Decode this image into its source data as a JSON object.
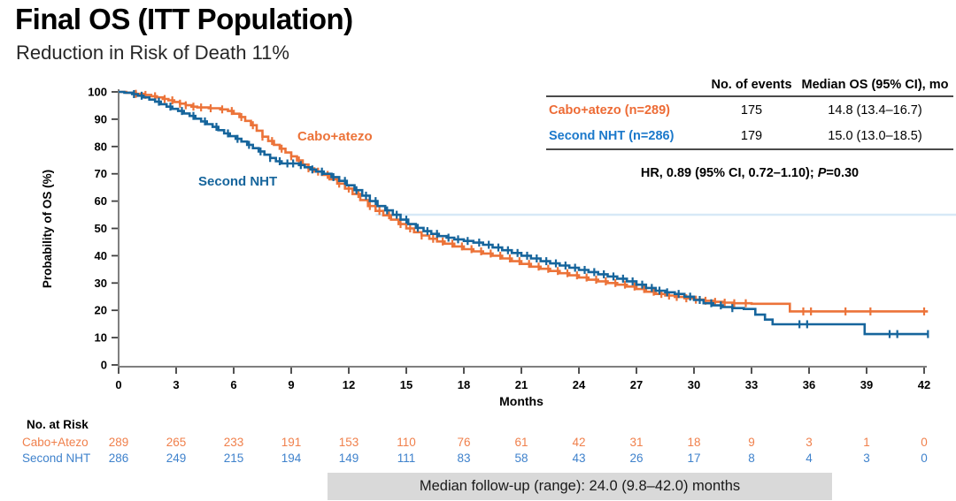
{
  "title": "Final OS (ITT Population)",
  "subtitle": "Reduction in Risk of Death 11%",
  "colors": {
    "curve_orange": "#EC7339",
    "curve_blue": "#16659C",
    "table_orange": "#ED6B35",
    "table_blue": "#1C79CB",
    "risk_orange": "#F0804C",
    "risk_blue": "#3F82CC",
    "axis_gray": "#7F7F7F",
    "tick_dark": "#3F3F3F",
    "rule_dark": "#4A4A4A",
    "footer_bg": "#D9D9D9",
    "ref_line": "#D7E9F7"
  },
  "chart_data": {
    "type": "line",
    "subtype": "kaplan-meier-step",
    "title": "Final OS (ITT Population)",
    "xlabel": "Months",
    "ylabel": "Probability of OS (%)",
    "xlim": [
      0,
      42
    ],
    "ylim": [
      0,
      100
    ],
    "x_ticks": [
      0,
      3,
      6,
      9,
      12,
      15,
      18,
      21,
      24,
      27,
      30,
      33,
      36,
      39,
      42
    ],
    "y_ticks": [
      0,
      10,
      20,
      30,
      40,
      50,
      60,
      70,
      80,
      90,
      100
    ],
    "grid": "off",
    "legend_position": "labels-on-curves",
    "reference_line": {
      "y_pct": 55,
      "x_start_month": 13.4
    },
    "series": [
      {
        "name": "Cabo+atezo",
        "n": 289,
        "events": 175,
        "median_os": "14.8 (13.4–16.7)",
        "steps": [
          [
            0,
            100
          ],
          [
            0.4,
            99.7
          ],
          [
            0.9,
            99.3
          ],
          [
            1.3,
            98.9
          ],
          [
            1.7,
            98.4
          ],
          [
            2.0,
            98.0
          ],
          [
            2.3,
            97.4
          ],
          [
            2.6,
            96.9
          ],
          [
            2.9,
            96.3
          ],
          [
            3.2,
            95.7
          ],
          [
            3.5,
            95.1
          ],
          [
            3.8,
            94.6
          ],
          [
            4.1,
            94.3
          ],
          [
            4.7,
            94.0
          ],
          [
            5.3,
            93.6
          ],
          [
            5.7,
            93.0
          ],
          [
            6.0,
            92.0
          ],
          [
            6.3,
            90.8
          ],
          [
            6.6,
            89.4
          ],
          [
            6.9,
            87.8
          ],
          [
            7.2,
            85.8
          ],
          [
            7.5,
            83.6
          ],
          [
            7.8,
            82.0
          ],
          [
            8.1,
            80.6
          ],
          [
            8.4,
            79.2
          ],
          [
            8.7,
            77.8
          ],
          [
            9.0,
            76.4
          ],
          [
            9.3,
            74.9
          ],
          [
            9.6,
            73.4
          ],
          [
            9.9,
            72.0
          ],
          [
            10.2,
            70.8
          ],
          [
            10.6,
            69.6
          ],
          [
            11.0,
            68.0
          ],
          [
            11.4,
            66.4
          ],
          [
            11.8,
            64.6
          ],
          [
            12.2,
            62.6
          ],
          [
            12.6,
            60.4
          ],
          [
            13.0,
            58.2
          ],
          [
            13.4,
            56.4
          ],
          [
            13.8,
            54.8
          ],
          [
            14.2,
            53.2
          ],
          [
            14.6,
            51.6
          ],
          [
            15.0,
            50.0
          ],
          [
            15.4,
            48.6
          ],
          [
            15.8,
            47.4
          ],
          [
            16.2,
            46.2
          ],
          [
            16.6,
            45.2
          ],
          [
            17.0,
            44.4
          ],
          [
            17.5,
            43.4
          ],
          [
            18.0,
            42.4
          ],
          [
            18.5,
            41.6
          ],
          [
            19.0,
            40.8
          ],
          [
            19.5,
            40.0
          ],
          [
            20.0,
            39.0
          ],
          [
            20.5,
            38.0
          ],
          [
            21.0,
            37.0
          ],
          [
            21.5,
            36.0
          ],
          [
            22.0,
            35.2
          ],
          [
            22.5,
            34.4
          ],
          [
            23.0,
            33.6
          ],
          [
            23.5,
            32.8
          ],
          [
            24.0,
            32.0
          ],
          [
            24.5,
            31.2
          ],
          [
            25.0,
            30.6
          ],
          [
            25.5,
            30.0
          ],
          [
            26.0,
            29.4
          ],
          [
            26.5,
            28.7
          ],
          [
            27.0,
            27.8
          ],
          [
            27.5,
            26.8
          ],
          [
            28.0,
            26.0
          ],
          [
            28.5,
            25.4
          ],
          [
            29.0,
            24.9
          ],
          [
            29.5,
            24.4
          ],
          [
            30.0,
            23.9
          ],
          [
            30.5,
            23.5
          ],
          [
            31.0,
            23.1
          ],
          [
            31.5,
            22.8
          ],
          [
            32.0,
            22.6
          ],
          [
            33.0,
            22.4
          ],
          [
            34.9,
            22.4
          ],
          [
            35.0,
            19.6
          ],
          [
            42.2,
            19.6
          ]
        ],
        "censor_months": [
          0.9,
          1.4,
          1.9,
          2.4,
          2.8,
          3.2,
          3.5,
          3.9,
          4.3,
          4.8,
          5.4,
          5.9,
          6.4,
          7.0,
          7.5,
          8.0,
          8.5,
          9.0,
          9.4,
          9.9,
          10.4,
          10.9,
          11.5,
          12.0,
          12.5,
          13.1,
          13.6,
          14.1,
          14.7,
          15.2,
          15.8,
          16.4,
          16.9,
          17.4,
          17.9,
          18.4,
          18.9,
          19.4,
          19.9,
          20.4,
          20.9,
          21.4,
          21.9,
          22.4,
          22.9,
          23.4,
          23.9,
          24.4,
          24.9,
          25.4,
          25.9,
          26.4,
          26.9,
          27.4,
          27.9,
          28.3,
          28.7,
          29.1,
          29.6,
          30.1,
          30.6,
          31.1,
          31.6,
          32.1,
          32.7,
          35.7,
          36.1,
          37.9,
          39.2,
          42.0
        ],
        "label_text": "Cabo+atezo"
      },
      {
        "name": "Second NHT",
        "n": 286,
        "events": 179,
        "median_os": "15.0 (13.0–18.5)",
        "steps": [
          [
            0,
            100
          ],
          [
            0.3,
            99.7
          ],
          [
            0.7,
            99.2
          ],
          [
            1.0,
            98.6
          ],
          [
            1.3,
            98.0
          ],
          [
            1.6,
            97.2
          ],
          [
            1.9,
            96.4
          ],
          [
            2.2,
            95.5
          ],
          [
            2.5,
            94.6
          ],
          [
            2.8,
            93.8
          ],
          [
            3.1,
            93.0
          ],
          [
            3.4,
            92.1
          ],
          [
            3.7,
            91.2
          ],
          [
            4.0,
            90.2
          ],
          [
            4.3,
            89.2
          ],
          [
            4.6,
            88.2
          ],
          [
            4.9,
            87.2
          ],
          [
            5.2,
            86.0
          ],
          [
            5.5,
            84.8
          ],
          [
            5.8,
            83.8
          ],
          [
            6.1,
            82.8
          ],
          [
            6.4,
            81.8
          ],
          [
            6.7,
            80.6
          ],
          [
            7.0,
            79.4
          ],
          [
            7.3,
            78.2
          ],
          [
            7.6,
            77.0
          ],
          [
            7.9,
            75.8
          ],
          [
            8.2,
            74.6
          ],
          [
            8.5,
            73.8
          ],
          [
            9.4,
            73.2
          ],
          [
            9.7,
            72.4
          ],
          [
            10.0,
            71.6
          ],
          [
            10.3,
            70.8
          ],
          [
            10.7,
            70.0
          ],
          [
            11.1,
            68.8
          ],
          [
            11.5,
            67.4
          ],
          [
            11.9,
            65.8
          ],
          [
            12.3,
            64.0
          ],
          [
            12.7,
            62.0
          ],
          [
            13.1,
            60.0
          ],
          [
            13.5,
            58.2
          ],
          [
            13.9,
            56.6
          ],
          [
            14.3,
            55.0
          ],
          [
            14.7,
            53.2
          ],
          [
            15.1,
            51.6
          ],
          [
            15.5,
            50.2
          ],
          [
            15.9,
            49.0
          ],
          [
            16.3,
            48.0
          ],
          [
            16.7,
            47.2
          ],
          [
            17.1,
            46.6
          ],
          [
            17.5,
            46.0
          ],
          [
            18.0,
            45.4
          ],
          [
            18.5,
            44.8
          ],
          [
            19.0,
            44.0
          ],
          [
            19.5,
            43.0
          ],
          [
            20.0,
            42.0
          ],
          [
            20.5,
            41.0
          ],
          [
            21.0,
            40.0
          ],
          [
            21.5,
            39.0
          ],
          [
            22.0,
            38.0
          ],
          [
            22.5,
            37.2
          ],
          [
            23.0,
            36.4
          ],
          [
            23.5,
            35.6
          ],
          [
            24.0,
            34.8
          ],
          [
            24.5,
            34.0
          ],
          [
            25.0,
            33.2
          ],
          [
            25.5,
            32.4
          ],
          [
            26.0,
            31.6
          ],
          [
            26.5,
            30.6
          ],
          [
            27.0,
            29.4
          ],
          [
            27.5,
            28.2
          ],
          [
            28.0,
            27.2
          ],
          [
            28.5,
            26.6
          ],
          [
            29.0,
            26.0
          ],
          [
            29.5,
            25.0
          ],
          [
            30.0,
            23.8
          ],
          [
            30.5,
            22.6
          ],
          [
            31.0,
            21.8
          ],
          [
            31.5,
            21.2
          ],
          [
            32.0,
            20.8
          ],
          [
            32.6,
            20.5
          ],
          [
            33.2,
            18.4
          ],
          [
            33.7,
            16.6
          ],
          [
            34.1,
            14.9
          ],
          [
            38.7,
            14.9
          ],
          [
            38.9,
            11.3
          ],
          [
            42.2,
            11.3
          ]
        ],
        "censor_months": [
          0.8,
          1.2,
          2.1,
          2.7,
          3.3,
          3.9,
          4.5,
          5.1,
          5.7,
          6.2,
          6.8,
          7.4,
          7.9,
          8.4,
          8.8,
          9.1,
          9.5,
          10.1,
          10.6,
          11.2,
          11.8,
          12.4,
          12.9,
          13.4,
          14.0,
          14.5,
          15.0,
          15.6,
          16.1,
          16.6,
          17.2,
          17.7,
          18.2,
          18.8,
          19.3,
          19.8,
          20.3,
          20.8,
          21.3,
          21.8,
          22.3,
          22.8,
          23.3,
          23.8,
          24.3,
          24.8,
          25.3,
          25.8,
          26.3,
          26.8,
          27.3,
          27.8,
          28.2,
          28.6,
          29.2,
          29.8,
          30.3,
          30.9,
          31.4,
          32.0,
          35.5,
          35.9,
          40.2,
          40.6,
          42.2
        ],
        "label_text": "Second NHT"
      }
    ]
  },
  "stats_table": {
    "headers": [
      "No. of events",
      "Median OS (95% CI), mo"
    ],
    "rows": [
      {
        "label": "Cabo+atezo (n=289)",
        "events": "175",
        "median": "14.8 (13.4–16.7)"
      },
      {
        "label": "Second NHT (n=286)",
        "events": "179",
        "median": "15.0 (13.0–18.5)"
      }
    ]
  },
  "hr_line": {
    "prefix": "HR, 0.89 (95% CI, 0.72–1.10); ",
    "p_italic": "P",
    "suffix": "=0.30"
  },
  "risk_table": {
    "title": "No. at Risk",
    "months": [
      0,
      3,
      6,
      9,
      12,
      15,
      18,
      21,
      24,
      27,
      30,
      33,
      36,
      39,
      42
    ],
    "rows": [
      {
        "label": "Cabo+Atezo",
        "values": [
          289,
          265,
          233,
          191,
          153,
          110,
          76,
          61,
          42,
          31,
          18,
          9,
          3,
          1,
          0
        ]
      },
      {
        "label": "Second NHT",
        "values": [
          286,
          249,
          215,
          194,
          149,
          111,
          83,
          58,
          43,
          26,
          17,
          8,
          4,
          3,
          0
        ]
      }
    ]
  },
  "footer": "Median follow-up (range): 24.0 (9.8–42.0) months"
}
